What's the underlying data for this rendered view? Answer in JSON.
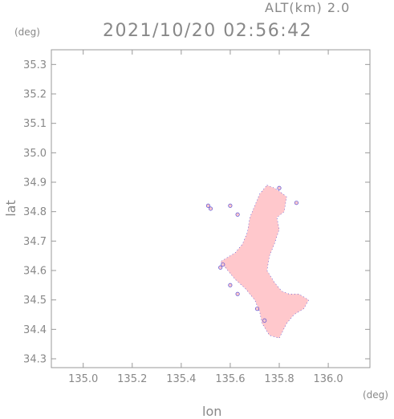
{
  "header": {
    "altitude_label": "ALT(km) 2.0",
    "timestamp": "2021/10/20 02:56:42"
  },
  "axes": {
    "lat_unit": "(deg)",
    "lon_unit": "(deg)",
    "lat_label": "lat",
    "lon_label": "lon",
    "lat_ticks": [
      "35.3",
      "35.2",
      "35.1",
      "35.0",
      "34.9",
      "34.8",
      "34.7",
      "34.6",
      "34.5",
      "34.4",
      "34.3"
    ],
    "lon_ticks": [
      "135.0",
      "135.2",
      "135.4",
      "135.6",
      "135.8",
      "136.0"
    ]
  },
  "map": {
    "lon_range": [
      134.87,
      136.17
    ],
    "lat_range": [
      34.27,
      35.35
    ],
    "grid": false,
    "echo_fill_color": "#ffc8cc",
    "echo_edge_color": "#3a3ad6",
    "echo_region_outline": [
      [
        135.75,
        34.89
      ],
      [
        135.78,
        34.88
      ],
      [
        135.8,
        34.87
      ],
      [
        135.83,
        34.85
      ],
      [
        135.82,
        34.8
      ],
      [
        135.79,
        34.78
      ],
      [
        135.8,
        34.74
      ],
      [
        135.78,
        34.69
      ],
      [
        135.76,
        34.65
      ],
      [
        135.75,
        34.6
      ],
      [
        135.78,
        34.56
      ],
      [
        135.81,
        34.53
      ],
      [
        135.84,
        34.52
      ],
      [
        135.88,
        34.52
      ],
      [
        135.92,
        34.5
      ],
      [
        135.9,
        34.47
      ],
      [
        135.86,
        34.45
      ],
      [
        135.83,
        34.42
      ],
      [
        135.8,
        34.37
      ],
      [
        135.76,
        34.38
      ],
      [
        135.73,
        34.42
      ],
      [
        135.72,
        34.46
      ],
      [
        135.7,
        34.5
      ],
      [
        135.66,
        34.54
      ],
      [
        135.62,
        34.57
      ],
      [
        135.58,
        34.61
      ],
      [
        135.56,
        34.63
      ],
      [
        135.62,
        34.66
      ],
      [
        135.65,
        34.69
      ],
      [
        135.67,
        34.73
      ],
      [
        135.68,
        34.78
      ],
      [
        135.7,
        34.82
      ],
      [
        135.72,
        34.86
      ]
    ],
    "echo_fragments": [
      [
        135.51,
        34.82
      ],
      [
        135.52,
        34.81
      ],
      [
        135.6,
        34.82
      ],
      [
        135.63,
        34.79
      ],
      [
        135.57,
        34.62
      ],
      [
        135.56,
        34.61
      ],
      [
        135.6,
        34.55
      ],
      [
        135.63,
        34.52
      ],
      [
        135.71,
        34.47
      ],
      [
        135.74,
        34.43
      ],
      [
        135.87,
        34.83
      ],
      [
        135.8,
        34.88
      ]
    ]
  }
}
